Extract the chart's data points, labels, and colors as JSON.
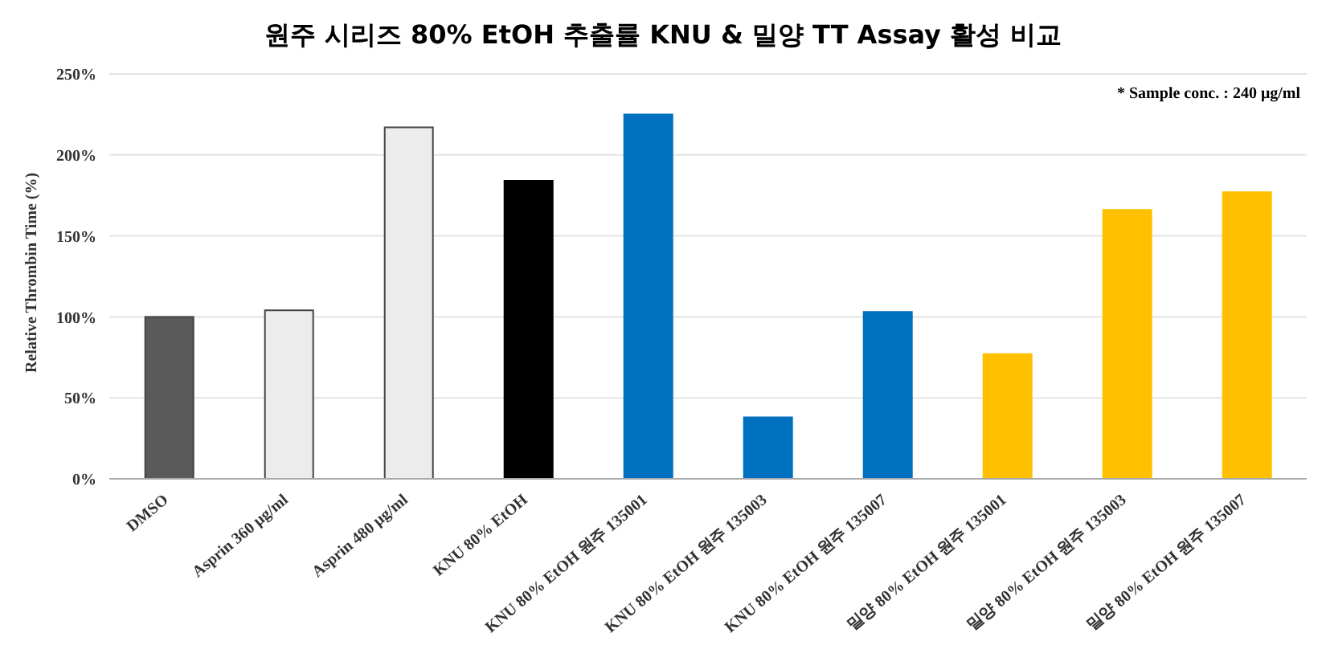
{
  "chart_data": {
    "type": "bar",
    "title": "원주 시리즈 80% EtOH 추출률 KNU & 밀양 TT Assay 활성 비교",
    "ylabel": "Relative Thrombin Time (%)",
    "annotations": [
      "* Sample conc. : 240 μg/ml"
    ],
    "categories": [
      "DMSO",
      "Asprin 360 μg/ml",
      "Asprin 480 μg/ml",
      "KNU 80% EtOH",
      "KNU 80% EtOH 원주 135001",
      "KNU 80% EtOH 원주 135003",
      "KNU 80% EtOH 원주 135007",
      "밀양 80% EtOH 원주 135001",
      "밀양 80% EtOH 원주 135003",
      "밀양 80% EtOH 원주 135007"
    ],
    "values": [
      100,
      104,
      217,
      184,
      225,
      38,
      103,
      77,
      166,
      177
    ],
    "colors": [
      "#5a5a5a",
      "#ececec",
      "#ececec",
      "#000000",
      "#0070c0",
      "#0070c0",
      "#0070c0",
      "#ffc000",
      "#ffc000",
      "#ffc000"
    ],
    "ylim": [
      0,
      250
    ],
    "yticks": [
      {
        "value": 0,
        "label": "0%"
      },
      {
        "value": 50,
        "label": "50%"
      },
      {
        "value": 100,
        "label": "100%"
      },
      {
        "value": 150,
        "label": "150%"
      },
      {
        "value": 200,
        "label": "200%"
      },
      {
        "value": 250,
        "label": "250%"
      }
    ],
    "grid": "y"
  }
}
